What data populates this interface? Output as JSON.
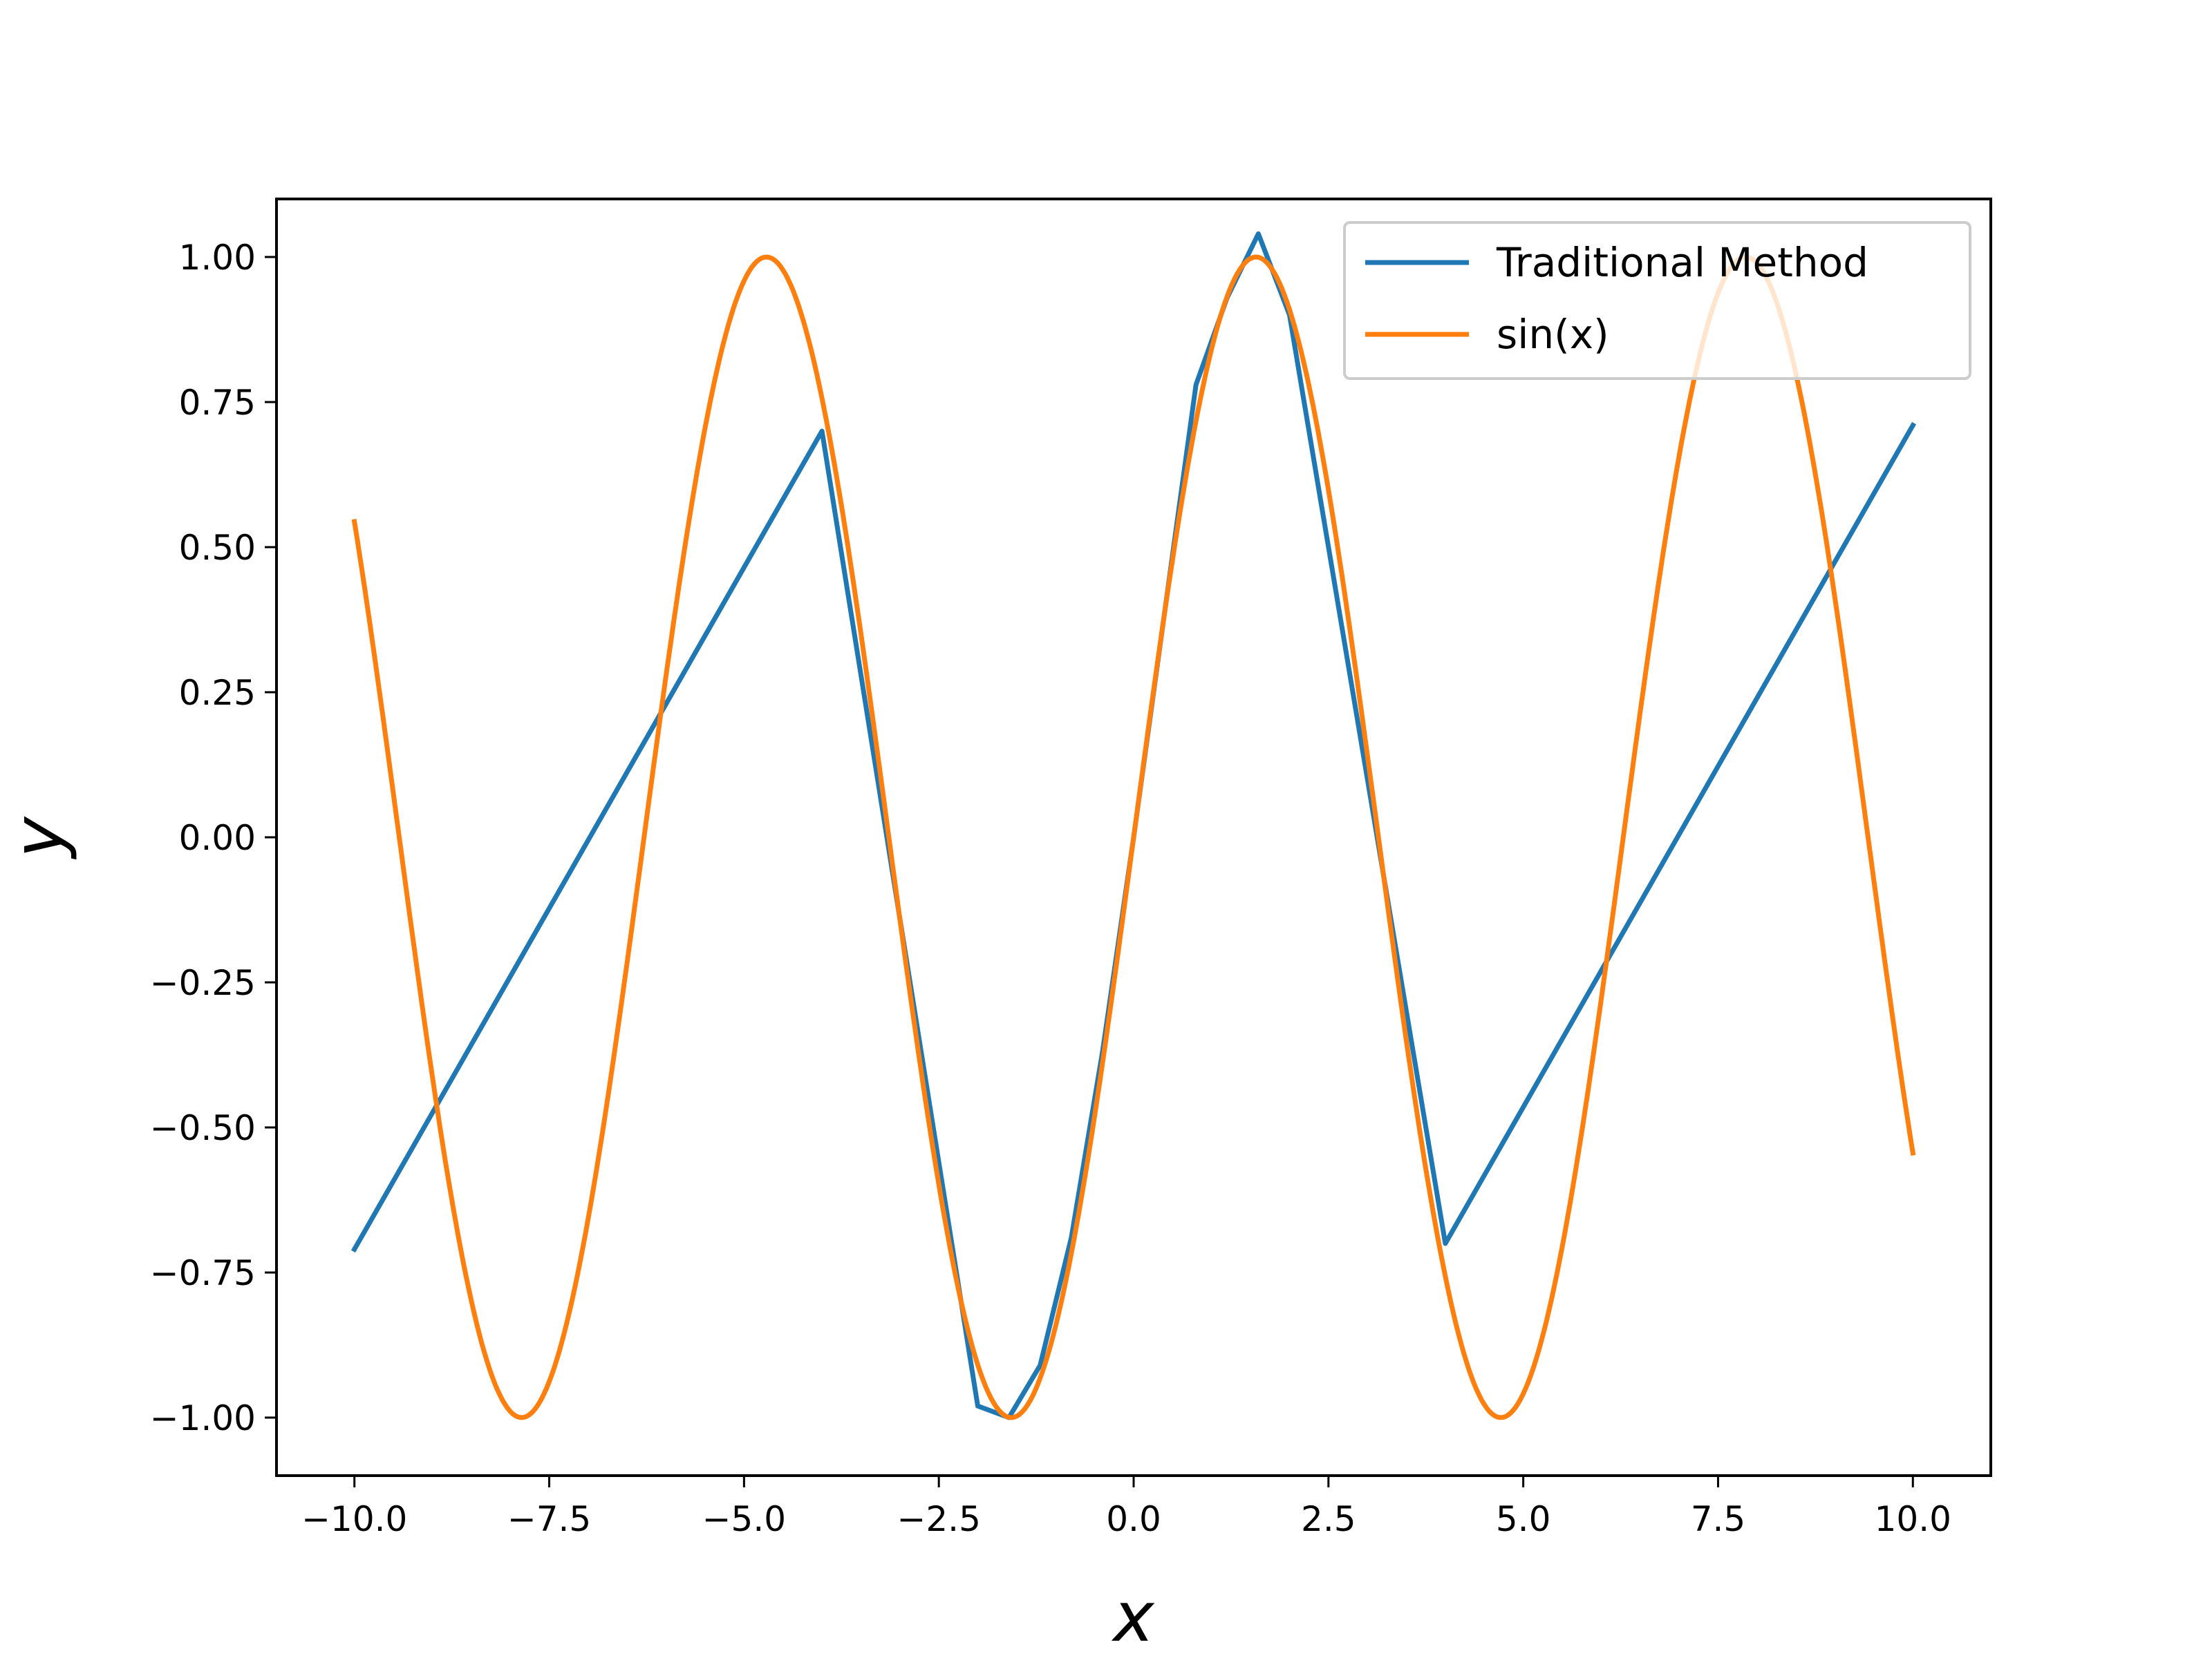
{
  "chart_data": {
    "type": "line",
    "title": "",
    "xlabel": "x",
    "ylabel": "y",
    "xlim": [
      -11.0,
      11.0
    ],
    "ylim": [
      -1.1,
      1.1
    ],
    "xticks": [
      -10.0,
      -7.5,
      -5.0,
      -2.5,
      0.0,
      2.5,
      5.0,
      7.5,
      10.0
    ],
    "xtick_labels": [
      "−10.0",
      "−7.5",
      "−5.0",
      "−2.5",
      "0.0",
      "2.5",
      "5.0",
      "7.5",
      "10.0"
    ],
    "yticks": [
      1.0,
      0.75,
      0.5,
      0.25,
      0.0,
      -0.25,
      -0.5,
      -0.75,
      -1.0
    ],
    "ytick_labels": [
      "1.00",
      "0.75",
      "0.50",
      "0.25",
      "0.00",
      "−0.25",
      "−0.50",
      "−0.75",
      "−1.00"
    ],
    "grid": false,
    "legend_position": "top-right",
    "series": [
      {
        "name": "Traditional Method",
        "color": "#1f77b4",
        "x": [
          -10.0,
          -4.0,
          -2.0,
          -1.6,
          -1.2,
          -0.8,
          -0.4,
          0.0,
          0.4,
          0.8,
          1.2,
          1.6,
          2.0,
          4.0,
          10.0
        ],
        "y": [
          -0.71,
          0.7,
          -0.98,
          -1.0,
          -0.91,
          -0.69,
          -0.37,
          0.0,
          0.39,
          0.78,
          0.93,
          1.04,
          0.9,
          -0.7,
          0.71
        ]
      },
      {
        "name": "sin(x)",
        "color": "#ff7f0e",
        "function": "sin",
        "x_range": [
          -10.0,
          10.0
        ]
      }
    ]
  }
}
